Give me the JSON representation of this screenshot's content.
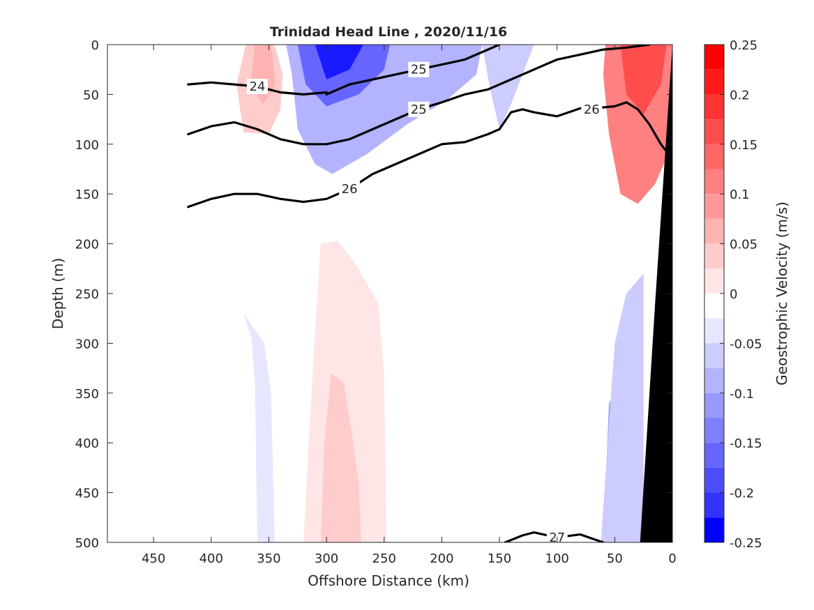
{
  "chart_data": {
    "type": "heatmap",
    "title": "Trinidad Head Line , 2020/11/16",
    "xlabel": "Offshore Distance (km)",
    "ylabel": "Depth (m)",
    "colorbar_label": "Geostrophic Velocity (m/s)",
    "xlim": [
      490,
      0
    ],
    "ylim": [
      0,
      500
    ],
    "x_direction": "reversed",
    "y_direction": "reversed (depth increases downward)",
    "x_ticks": [
      450,
      400,
      350,
      300,
      250,
      200,
      150,
      100,
      50,
      0
    ],
    "y_ticks": [
      0,
      50,
      100,
      150,
      200,
      250,
      300,
      350,
      400,
      450,
      500
    ],
    "colorbar_ticks": [
      0.25,
      0.2,
      0.15,
      0.1,
      0.05,
      0,
      -0.05,
      -0.1,
      -0.15,
      -0.2,
      -0.25
    ],
    "colorbar_ticks_text": [
      "0.25",
      "0.2",
      "0.15",
      "0.1",
      "0.05",
      "0",
      "-0.05",
      "-0.1",
      "-0.15",
      "-0.2",
      "-0.25"
    ],
    "colorbar_levels": [
      {
        "lo": 0.225,
        "hi": 0.25,
        "color": "#ff0000"
      },
      {
        "lo": 0.2,
        "hi": 0.225,
        "color": "#ff1a1a"
      },
      {
        "lo": 0.175,
        "hi": 0.2,
        "color": "#ff3333"
      },
      {
        "lo": 0.15,
        "hi": 0.175,
        "color": "#ff4d4d"
      },
      {
        "lo": 0.125,
        "hi": 0.15,
        "color": "#ff6666"
      },
      {
        "lo": 0.1,
        "hi": 0.125,
        "color": "#ff8080"
      },
      {
        "lo": 0.075,
        "hi": 0.1,
        "color": "#ff9999"
      },
      {
        "lo": 0.05,
        "hi": 0.075,
        "color": "#ffb3b3"
      },
      {
        "lo": 0.025,
        "hi": 0.05,
        "color": "#ffcccc"
      },
      {
        "lo": 0.0,
        "hi": 0.025,
        "color": "#ffe6e6"
      },
      {
        "lo": -0.025,
        "hi": 0.0,
        "color": "#ffffff"
      },
      {
        "lo": -0.05,
        "hi": -0.025,
        "color": "#e6e6ff"
      },
      {
        "lo": -0.075,
        "hi": -0.05,
        "color": "#ccccff"
      },
      {
        "lo": -0.1,
        "hi": -0.075,
        "color": "#b3b3ff"
      },
      {
        "lo": -0.125,
        "hi": -0.1,
        "color": "#9999ff"
      },
      {
        "lo": -0.15,
        "hi": -0.125,
        "color": "#8080ff"
      },
      {
        "lo": -0.175,
        "hi": -0.15,
        "color": "#6666ff"
      },
      {
        "lo": -0.2,
        "hi": -0.175,
        "color": "#4d4dff"
      },
      {
        "lo": -0.225,
        "hi": -0.2,
        "color": "#3333ff"
      },
      {
        "lo": -0.25,
        "hi": -0.225,
        "color": "#0000ff"
      }
    ],
    "velocity_regions": [
      {
        "v": 0.05,
        "color": "#ffcccc",
        "polygon": [
          [
            370,
            0
          ],
          [
            345,
            0
          ],
          [
            338,
            30
          ],
          [
            340,
            65
          ],
          [
            350,
            90
          ],
          [
            372,
            88
          ],
          [
            378,
            40
          ]
        ]
      },
      {
        "v": 0.08,
        "color": "#ffb3b3",
        "polygon": [
          [
            362,
            0
          ],
          [
            348,
            0
          ],
          [
            344,
            40
          ],
          [
            355,
            60
          ],
          [
            366,
            40
          ]
        ]
      },
      {
        "v": -0.1,
        "color": "#b3b3ff",
        "polygon": [
          [
            335,
            0
          ],
          [
            165,
            0
          ],
          [
            170,
            30
          ],
          [
            195,
            55
          ],
          [
            230,
            80
          ],
          [
            265,
            110
          ],
          [
            295,
            130
          ],
          [
            310,
            120
          ],
          [
            325,
            85
          ],
          [
            330,
            30
          ]
        ]
      },
      {
        "v": -0.15,
        "color": "#6666ff",
        "polygon": [
          [
            325,
            0
          ],
          [
            245,
            0
          ],
          [
            250,
            25
          ],
          [
            272,
            50
          ],
          [
            300,
            62
          ],
          [
            318,
            40
          ]
        ]
      },
      {
        "v": -0.22,
        "color": "#1a1aff",
        "polygon": [
          [
            310,
            0
          ],
          [
            268,
            0
          ],
          [
            280,
            25
          ],
          [
            300,
            35
          ]
        ]
      },
      {
        "v": -0.05,
        "color": "#ccccff",
        "polygon": [
          [
            165,
            0
          ],
          [
            120,
            0
          ],
          [
            140,
            60
          ],
          [
            150,
            85
          ],
          [
            158,
            45
          ]
        ]
      },
      {
        "v": 0.03,
        "color": "#ffe6e6",
        "polygon": [
          [
            305,
            200
          ],
          [
            290,
            197
          ],
          [
            275,
            220
          ],
          [
            255,
            260
          ],
          [
            250,
            330
          ],
          [
            248,
            500
          ],
          [
            320,
            500
          ],
          [
            315,
            390
          ],
          [
            310,
            290
          ]
        ]
      },
      {
        "v": 0.05,
        "color": "#ffcccc",
        "polygon": [
          [
            296,
            330
          ],
          [
            285,
            340
          ],
          [
            278,
            390
          ],
          [
            272,
            440
          ],
          [
            270,
            500
          ],
          [
            305,
            500
          ],
          [
            302,
            400
          ]
        ]
      },
      {
        "v": -0.03,
        "color": "#e6e6ff",
        "polygon": [
          [
            372,
            270
          ],
          [
            365,
            295
          ],
          [
            362,
            340
          ],
          [
            360,
            500
          ],
          [
            345,
            500
          ],
          [
            348,
            350
          ],
          [
            354,
            300
          ]
        ]
      },
      {
        "v": 0.12,
        "color": "#ff8080",
        "polygon": [
          [
            58,
            0
          ],
          [
            0,
            0
          ],
          [
            0,
            100
          ],
          [
            15,
            140
          ],
          [
            30,
            160
          ],
          [
            45,
            150
          ],
          [
            55,
            90
          ],
          [
            60,
            30
          ]
        ]
      },
      {
        "v": 0.18,
        "color": "#ff4d4d",
        "polygon": [
          [
            45,
            0
          ],
          [
            5,
            0
          ],
          [
            10,
            40
          ],
          [
            25,
            70
          ],
          [
            40,
            50
          ]
        ]
      },
      {
        "v": -0.1,
        "color": "#9999ff",
        "polygon": [
          [
            60,
            500
          ],
          [
            25,
            500
          ],
          [
            30,
            380
          ],
          [
            45,
            340
          ],
          [
            55,
            360
          ]
        ]
      },
      {
        "v": -0.05,
        "color": "#ccccff",
        "polygon": [
          [
            62,
            500
          ],
          [
            55,
            380
          ],
          [
            50,
            300
          ],
          [
            40,
            250
          ],
          [
            25,
            230
          ],
          [
            25,
            500
          ]
        ]
      }
    ],
    "isopycnals": [
      {
        "label": "24",
        "bold": true,
        "x": [
          420,
          400,
          380,
          360,
          340,
          320,
          300
        ],
        "y": [
          40,
          38,
          40,
          42,
          48,
          50,
          48
        ]
      },
      {
        "label": "25",
        "bold": true,
        "x": [
          300,
          280,
          260,
          240,
          220,
          200,
          180,
          160,
          150
        ],
        "y": [
          50,
          40,
          35,
          30,
          25,
          20,
          15,
          5,
          0
        ]
      },
      {
        "label": "25",
        "bold": true,
        "x": [
          420,
          400,
          380,
          360,
          340,
          320,
          300,
          280,
          260,
          240,
          220,
          200,
          180,
          160,
          140,
          120,
          100,
          80,
          60,
          40,
          20
        ],
        "y": [
          90,
          82,
          78,
          85,
          95,
          100,
          100,
          95,
          85,
          75,
          65,
          58,
          50,
          45,
          35,
          25,
          15,
          10,
          5,
          3,
          0
        ]
      },
      {
        "label": "26",
        "bold": true,
        "x": [
          150,
          140,
          130,
          120,
          110,
          100,
          90,
          80,
          70,
          60,
          50,
          40,
          30,
          20,
          10,
          0
        ],
        "y": [
          85,
          68,
          65,
          68,
          70,
          72,
          68,
          64,
          65,
          63,
          62,
          58,
          65,
          80,
          100,
          115
        ]
      },
      {
        "label": "26",
        "bold": true,
        "x": [
          420,
          400,
          380,
          360,
          340,
          320,
          300,
          280,
          260,
          240,
          220,
          200,
          180,
          160,
          150
        ],
        "y": [
          163,
          155,
          150,
          150,
          155,
          158,
          155,
          145,
          130,
          120,
          110,
          100,
          98,
          90,
          85
        ]
      },
      {
        "label": "27",
        "bold": true,
        "x": [
          145,
          130,
          120,
          100,
          80,
          60
        ],
        "y": [
          500,
          493,
          490,
          495,
          492,
          500
        ]
      }
    ],
    "bottom_topography_polygon": [
      [
        0,
        0
      ],
      [
        0,
        500
      ],
      [
        28,
        500
      ],
      [
        15,
        260
      ],
      [
        0,
        0
      ]
    ]
  }
}
